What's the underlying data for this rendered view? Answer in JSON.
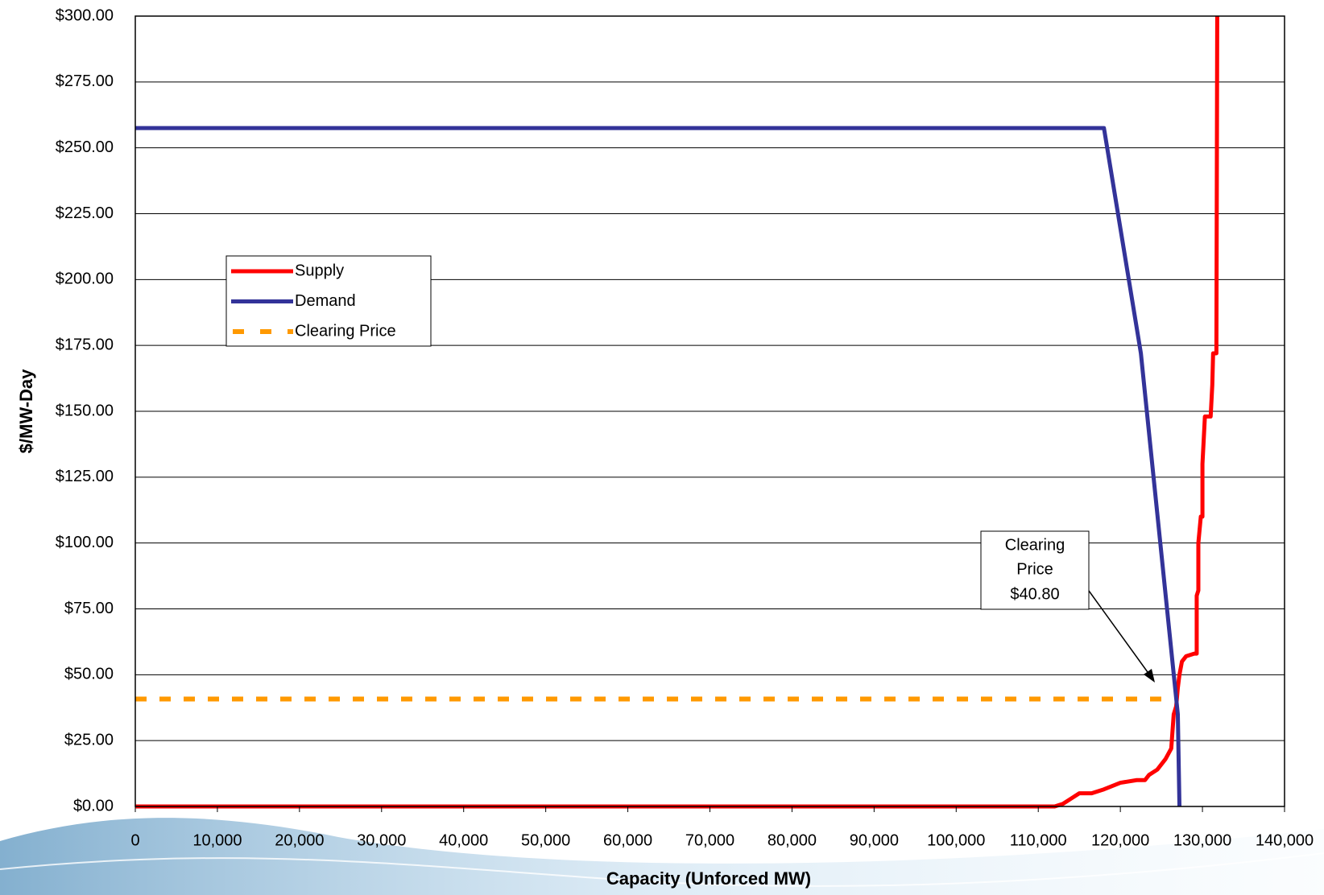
{
  "chart_data": {
    "type": "line",
    "xlabel": "Capacity (Unforced MW)",
    "ylabel": "$/MW-Day",
    "xlim": [
      0,
      140000
    ],
    "ylim": [
      0,
      300
    ],
    "xticks": [
      0,
      {
        "value": 10000,
        "label": "10,000"
      },
      {
        "value": 20000,
        "label": "20,000"
      },
      {
        "value": 30000,
        "label": "30,000"
      },
      {
        "value": 40000,
        "label": "40,000"
      },
      {
        "value": 50000,
        "label": "50,000"
      },
      {
        "value": 60000,
        "label": "60,000"
      },
      {
        "value": 70000,
        "label": "70,000"
      },
      {
        "value": 80000,
        "label": "80,000"
      },
      {
        "value": 90000,
        "label": "90,000"
      },
      {
        "value": 100000,
        "label": "100,000"
      },
      {
        "value": 110000,
        "label": "110,000"
      },
      {
        "value": 120000,
        "label": "120,000"
      },
      {
        "value": 130000,
        "label": "130,000"
      },
      {
        "value": 140000,
        "label": "140,000"
      }
    ],
    "yticks": [
      {
        "value": 0,
        "label": "$0.00"
      },
      {
        "value": 25,
        "label": "$25.00"
      },
      {
        "value": 50,
        "label": "$50.00"
      },
      {
        "value": 75,
        "label": "$75.00"
      },
      {
        "value": 100,
        "label": "$100.00"
      },
      {
        "value": 125,
        "label": "$125.00"
      },
      {
        "value": 150,
        "label": "$150.00"
      },
      {
        "value": 175,
        "label": "$175.00"
      },
      {
        "value": 200,
        "label": "$200.00"
      },
      {
        "value": 225,
        "label": "$225.00"
      },
      {
        "value": 250,
        "label": "$250.00"
      },
      {
        "value": 275,
        "label": "$275.00"
      },
      {
        "value": 300,
        "label": "$300.00"
      }
    ],
    "grid": true,
    "legend": "upper-left",
    "series": [
      {
        "name": "Supply",
        "color": "#ff0000",
        "style": "solid",
        "x": [
          0,
          112000,
          113000,
          114000,
          115000,
          116500,
          118000,
          120000,
          122000,
          123000,
          123500,
          124500,
          125500,
          126200,
          126500,
          126800,
          127000,
          127200,
          127500,
          128000,
          129000,
          129300,
          129300,
          129500,
          129500,
          129800,
          130000,
          130000,
          130300,
          131000,
          131200,
          131300,
          131700,
          131800
        ],
        "values": [
          0,
          0,
          1,
          3,
          5,
          5,
          6.5,
          9,
          10,
          10,
          12,
          14,
          18,
          22,
          35,
          38,
          45,
          50,
          55,
          57,
          58,
          58,
          80,
          82,
          100,
          110,
          110,
          130,
          148,
          148,
          160,
          172,
          172,
          300
        ]
      },
      {
        "name": "Demand",
        "color": "#333399",
        "style": "solid",
        "x": [
          0,
          118000,
          122500,
          127000,
          127200
        ],
        "values": [
          257.5,
          257.5,
          172,
          35,
          0
        ]
      },
      {
        "name": "Clearing Price",
        "color": "#ff9900",
        "style": "dashed",
        "x": [
          0,
          126500
        ],
        "values": [
          40.8,
          40.8
        ]
      }
    ],
    "annotation": {
      "lines": [
        "Clearing",
        "Price",
        "$40.80"
      ]
    }
  }
}
